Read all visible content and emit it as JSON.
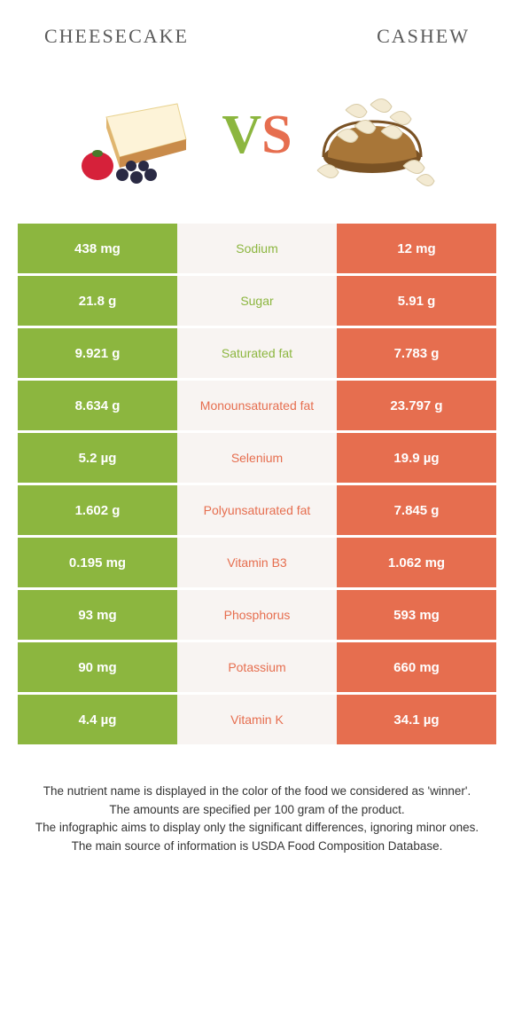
{
  "header": {
    "left_title": "CHEESECAKE",
    "right_title": "CASHEW"
  },
  "vs": {
    "v": "V",
    "s": "S"
  },
  "colors": {
    "left": "#8cb63f",
    "right": "#e66e4f",
    "mid_bg": "#f8f4f2",
    "v_color": "#8cb63f",
    "s_color": "#e66e4f"
  },
  "rows": [
    {
      "left": "438 mg",
      "label": "Sodium",
      "right": "12 mg",
      "winner": "left"
    },
    {
      "left": "21.8 g",
      "label": "Sugar",
      "right": "5.91 g",
      "winner": "left"
    },
    {
      "left": "9.921 g",
      "label": "Saturated fat",
      "right": "7.783 g",
      "winner": "left"
    },
    {
      "left": "8.634 g",
      "label": "Monounsaturated fat",
      "right": "23.797 g",
      "winner": "right"
    },
    {
      "left": "5.2 µg",
      "label": "Selenium",
      "right": "19.9 µg",
      "winner": "right"
    },
    {
      "left": "1.602 g",
      "label": "Polyunsaturated fat",
      "right": "7.845 g",
      "winner": "right"
    },
    {
      "left": "0.195 mg",
      "label": "Vitamin B3",
      "right": "1.062 mg",
      "winner": "right"
    },
    {
      "left": "93 mg",
      "label": "Phosphorus",
      "right": "593 mg",
      "winner": "right"
    },
    {
      "left": "90 mg",
      "label": "Potassium",
      "right": "660 mg",
      "winner": "right"
    },
    {
      "left": "4.4 µg",
      "label": "Vitamin K",
      "right": "34.1 µg",
      "winner": "right"
    }
  ],
  "footer": {
    "l1": "The nutrient name is displayed in the color of the food we considered as 'winner'.",
    "l2": "The amounts are specified per 100 gram of the product.",
    "l3": "The infographic aims to display only the significant differences, ignoring minor ones.",
    "l4": "The main source of information is USDA Food Composition Database."
  }
}
